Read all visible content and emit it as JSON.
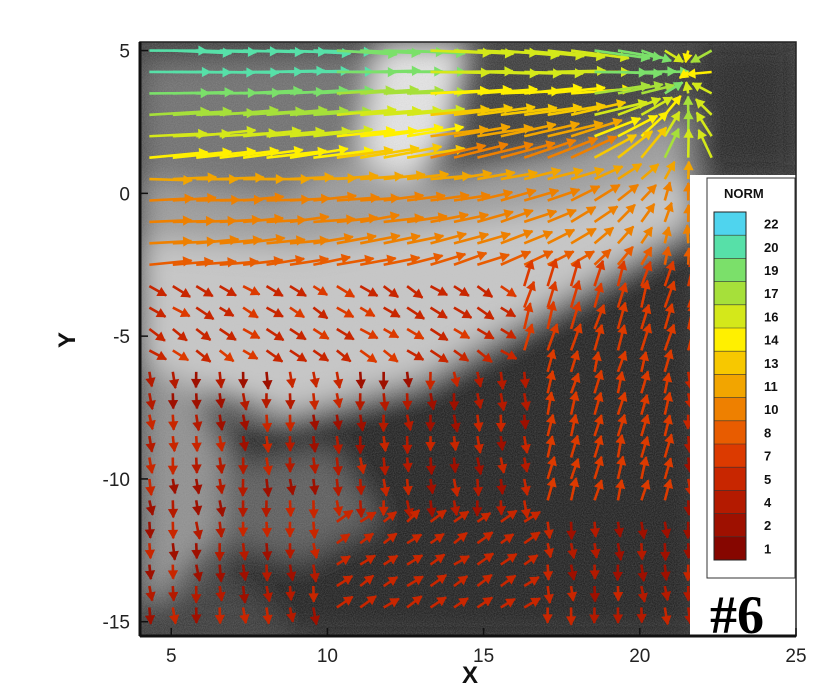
{
  "chart_data": {
    "type": "vector-field",
    "xlabel": "X",
    "ylabel": "Y",
    "xlim": [
      4,
      25
    ],
    "ylim": [
      -15.5,
      5.3
    ],
    "xticks": [
      "5",
      "10",
      "15",
      "20",
      "25"
    ],
    "yticks": [
      "5",
      "0",
      "-5",
      "-10",
      "-15"
    ],
    "xtick_values": [
      5,
      10,
      15,
      20,
      25
    ],
    "ytick_values": [
      5,
      0,
      -5,
      -10,
      -15
    ],
    "background": "grayscale PIV image: light plume from top-left across middle, dark region bottom-right",
    "legend": {
      "title": "NORM",
      "labels": [
        "22",
        "20",
        "19",
        "17",
        "16",
        "14",
        "13",
        "11",
        "10",
        "8",
        "7",
        "5",
        "4",
        "2",
        "1"
      ],
      "colors": [
        "#4fd4ee",
        "#57e0a8",
        "#7be06a",
        "#a6e03a",
        "#d4e81a",
        "#fff000",
        "#f7c800",
        "#f2a500",
        "#ee8000",
        "#e85c00",
        "#dc3a00",
        "#c82600",
        "#b41a00",
        "#9e1000",
        "#860600"
      ]
    },
    "panel_label": "#6",
    "vectors_description": "Velocity vectors: high-magnitude (13-20) rightward flow in upper band y 1 to 4 converging toward x~21,y~4; moderate (8-11) curving flow y -2 to 0; low-magnitude (1-7) mostly downward vectors in lower region with upward-right diagonal jets near x 18-21"
  }
}
